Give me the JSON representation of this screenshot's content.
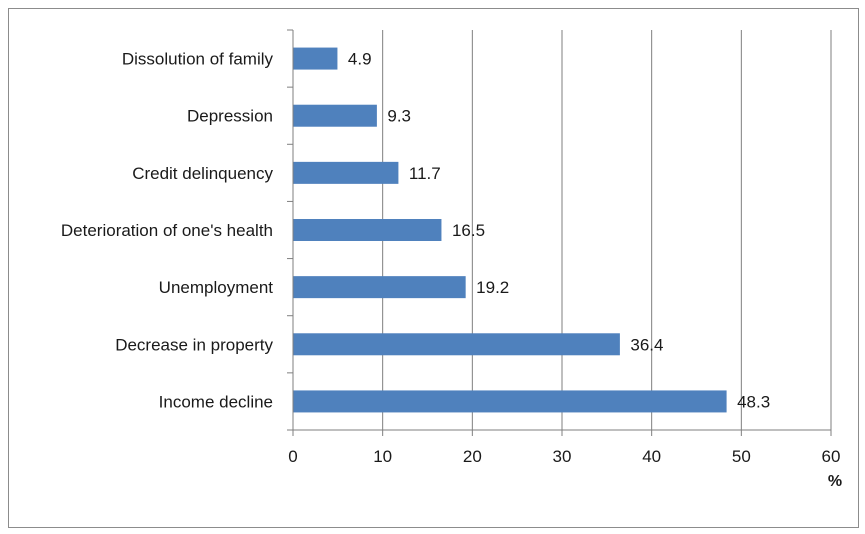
{
  "chart_data": {
    "type": "bar",
    "orientation": "horizontal",
    "categories": [
      "Dissolution of family",
      "Depression",
      "Credit delinquency",
      "Deterioration of one's health",
      "Unemployment",
      "Decrease in property",
      "Income decline"
    ],
    "values": [
      4.9,
      9.3,
      11.7,
      16.5,
      19.2,
      36.4,
      48.3
    ],
    "data_labels": [
      "4.9",
      "9.3",
      "11.7",
      "16.5",
      "19.2",
      "36.4",
      "48.3"
    ],
    "xlim": [
      0,
      60
    ],
    "xticks": [
      0,
      10,
      20,
      30,
      40,
      50,
      60
    ],
    "xtick_labels": [
      "0",
      "10",
      "20",
      "30",
      "40",
      "50",
      "60"
    ],
    "xunit": "%",
    "title": "",
    "xlabel": "",
    "ylabel": "",
    "grid": "vertical",
    "legend": "none",
    "colors": {
      "bar": "#4f81bd",
      "grid": "#7f7f7f",
      "axis": "#7f7f7f",
      "frame": "#8c8c8c"
    }
  }
}
